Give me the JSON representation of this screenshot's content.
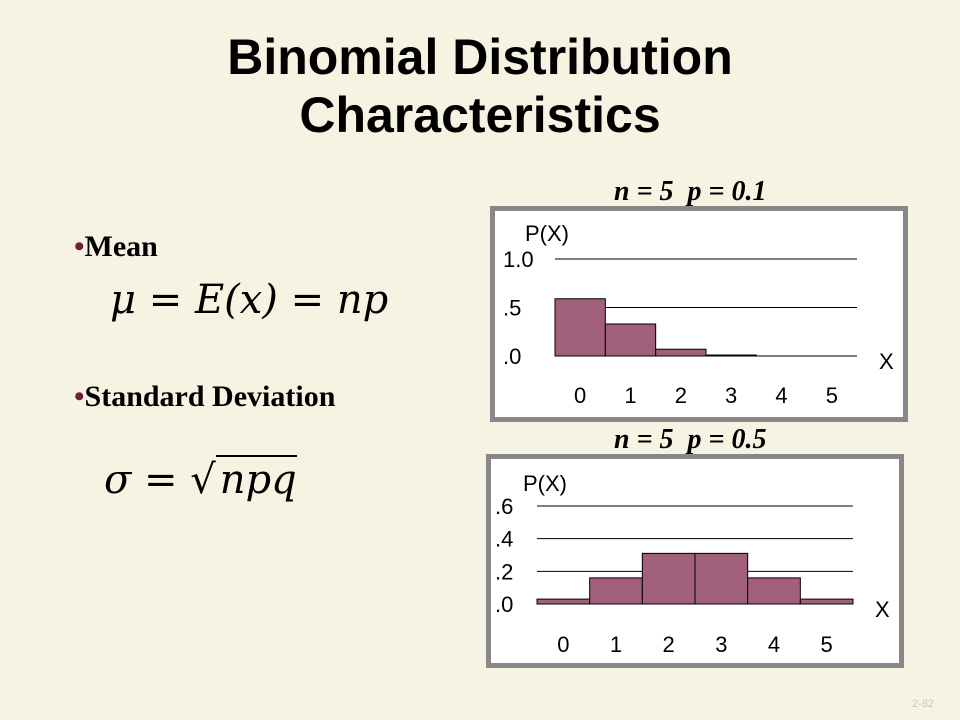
{
  "slide": {
    "title_line1": "Binomial Distribution",
    "title_line2": "Characteristics",
    "bullet_mean": "Mean",
    "bullet_sd": "Standard Deviation",
    "formula_mean": {
      "lhs": "μ = E(x) = ",
      "rhs": "np"
    },
    "formula_sd": {
      "lhs": "σ = ",
      "rhs": "npq"
    },
    "slide_number": "2-82",
    "bullet_color": "#6e1f3b"
  },
  "chart_data": [
    {
      "type": "bar",
      "caption": "n = 5  p = 0.1",
      "ylabel": "P(X)",
      "xlabel": "X",
      "categories": [
        "0",
        "1",
        "2",
        "3",
        "4",
        "5"
      ],
      "values": [
        0.59,
        0.33,
        0.07,
        0.01,
        0.0,
        0.0
      ],
      "ylim": [
        0,
        1.0
      ],
      "yticks": [
        0,
        0.5,
        1.0
      ],
      "ytick_labels": [
        ".0",
        ".5",
        "1.0"
      ],
      "grid": true,
      "bar_color": "#a0607a"
    },
    {
      "type": "bar",
      "caption": "n = 5  p = 0.5",
      "ylabel": "P(X)",
      "xlabel": "X",
      "categories": [
        "0",
        "1",
        "2",
        "3",
        "4",
        "5"
      ],
      "values": [
        0.03,
        0.16,
        0.31,
        0.31,
        0.16,
        0.03
      ],
      "ylim": [
        0,
        0.6
      ],
      "yticks": [
        0,
        0.2,
        0.4,
        0.6
      ],
      "ytick_labels": [
        ".0",
        ".2",
        ".4",
        ".6"
      ],
      "grid": true,
      "bar_color": "#a0607a"
    }
  ]
}
